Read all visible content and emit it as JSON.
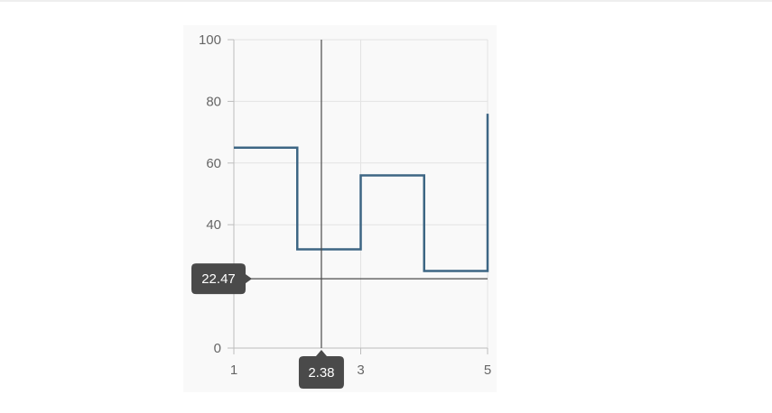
{
  "chart_data": {
    "type": "line",
    "step": true,
    "x": [
      1,
      2,
      3,
      4,
      5
    ],
    "series": [
      {
        "values": [
          65,
          32,
          56,
          25,
          76
        ]
      }
    ],
    "xlim": [
      1,
      5
    ],
    "ylim": [
      0,
      100
    ],
    "xticks": [
      1,
      3,
      5
    ],
    "yticks": [
      0,
      40,
      60,
      80,
      100
    ],
    "xlabel": "",
    "ylabel": "",
    "title": "",
    "grid": true,
    "crosshair": {
      "x": 2.38,
      "y": 22.47,
      "x_label": "2.38",
      "y_label": "22.47"
    },
    "colors": {
      "line": "#3d6684",
      "grid": "#e3e3e3",
      "axis": "#bdbdbd",
      "crosshair": "#4a4a4a",
      "label_bg": "#4a4a4a"
    }
  }
}
